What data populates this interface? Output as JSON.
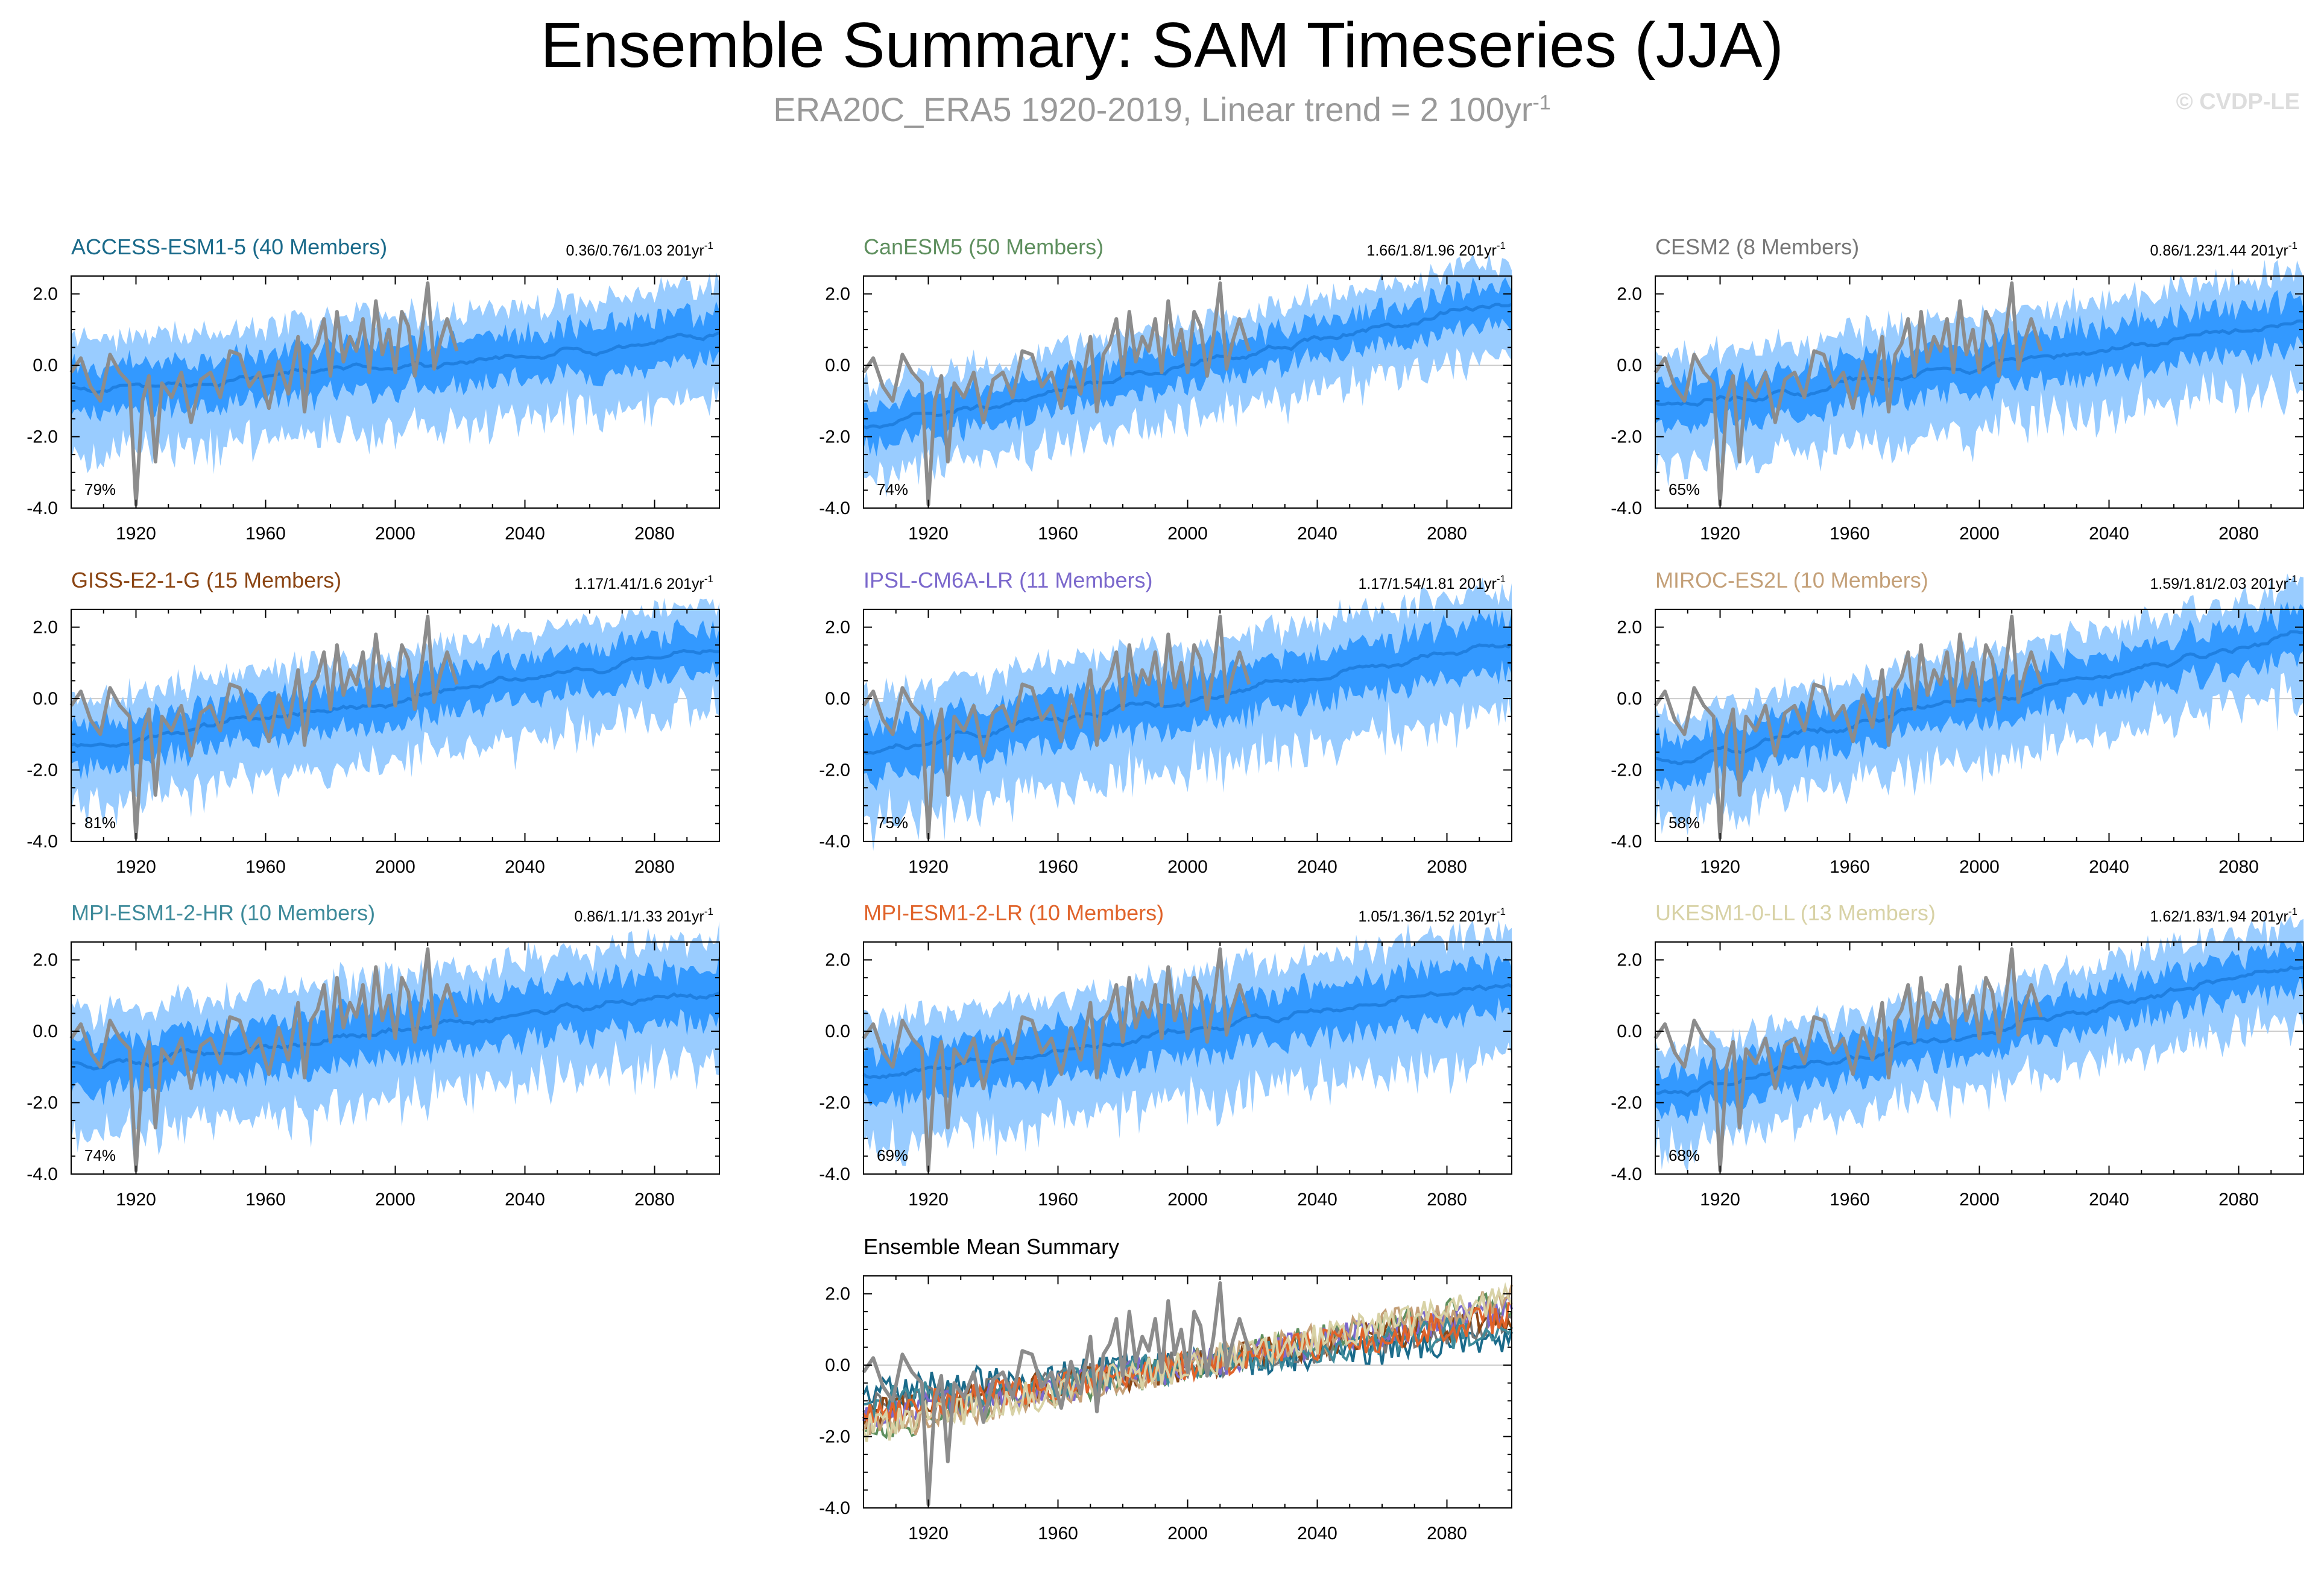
{
  "title": "Ensemble Summary: SAM Timeseries (JJA)",
  "subtitle": "ERA20C_ERA5 1920-2019, Linear trend = 2 100yr",
  "subtitle_sup": "-1",
  "watermark": "© CVDP-LE",
  "colors": {
    "outer_band": "#99ccff",
    "inner_band": "#3399ff",
    "ensemble_mean": "#1f7fe0",
    "observed": "#8c8c8c"
  },
  "chart_data": [
    {
      "type": "area",
      "title": "ACCESS-ESM1-5 (40 Members)",
      "title_color": "#1a6a8a",
      "trend_text": "0.36/0.76/1.03 201yr",
      "trend_sup": "-1",
      "percent": "79%",
      "trend": 0.0076,
      "spread": 0.9,
      "xlim": [
        1900,
        2100
      ],
      "ylim": [
        -4,
        2.5
      ],
      "xticks": [
        1920,
        1960,
        2000,
        2040,
        2080
      ],
      "yticks": [
        2,
        0,
        -2,
        -4
      ],
      "ytick_labels": [
        "2.0",
        "0.0",
        "-2.0",
        "-4.0"
      ]
    },
    {
      "type": "area",
      "title": "CanESM5 (50 Members)",
      "title_color": "#5e8f5e",
      "trend_text": "1.66/1.8/1.96 201yr",
      "trend_sup": "-1",
      "percent": "74%",
      "trend": 0.018,
      "spread": 0.75,
      "xlim": [
        1900,
        2100
      ],
      "ylim": [
        -4,
        2.5
      ],
      "xticks": [
        1920,
        1960,
        2000,
        2040,
        2080
      ],
      "yticks": [
        2,
        0,
        -2,
        -4
      ],
      "ytick_labels": [
        "2.0",
        "0.0",
        "-2.0",
        "-4.0"
      ]
    },
    {
      "type": "area",
      "title": "CESM2 (8 Members)",
      "title_color": "#777777",
      "trend_text": "0.86/1.23/1.44 201yr",
      "trend_sup": "-1",
      "percent": "65%",
      "trend": 0.0123,
      "spread": 0.9,
      "xlim": [
        1900,
        2100
      ],
      "ylim": [
        -4,
        2.5
      ],
      "xticks": [
        1920,
        1960,
        2000,
        2040,
        2080
      ],
      "yticks": [
        2,
        0,
        -2,
        -4
      ],
      "ytick_labels": [
        "2.0",
        "0.0",
        "-2.0",
        "-4.0"
      ]
    },
    {
      "type": "area",
      "title": "GISS-E2-1-G (15 Members)",
      "title_color": "#8b4513",
      "trend_text": "1.17/1.41/1.6 201yr",
      "trend_sup": "-1",
      "percent": "81%",
      "trend": 0.0141,
      "spread": 0.85,
      "xlim": [
        1900,
        2100
      ],
      "ylim": [
        -4,
        2.5
      ],
      "xticks": [
        1920,
        1960,
        2000,
        2040,
        2080
      ],
      "yticks": [
        2,
        0,
        -2,
        -4
      ],
      "ytick_labels": [
        "2.0",
        "0.0",
        "-2.0",
        "-4.0"
      ]
    },
    {
      "type": "area",
      "title": "IPSL-CM6A-LR (11 Members)",
      "title_color": "#7b68cc",
      "trend_text": "1.17/1.54/1.81 201yr",
      "trend_sup": "-1",
      "percent": "75%",
      "trend": 0.0154,
      "spread": 1.0,
      "xlim": [
        1900,
        2100
      ],
      "ylim": [
        -4,
        2.5
      ],
      "xticks": [
        1920,
        1960,
        2000,
        2040,
        2080
      ],
      "yticks": [
        2,
        0,
        -2,
        -4
      ],
      "ytick_labels": [
        "2.0",
        "0.0",
        "-2.0",
        "-4.0"
      ]
    },
    {
      "type": "area",
      "title": "MIROC-ES2L (10 Members)",
      "title_color": "#c4a078",
      "trend_text": "1.59/1.81/2.03 201yr",
      "trend_sup": "-1",
      "percent": "58%",
      "trend": 0.0181,
      "spread": 0.85,
      "xlim": [
        1900,
        2100
      ],
      "ylim": [
        -4,
        2.5
      ],
      "xticks": [
        1920,
        1960,
        2000,
        2040,
        2080
      ],
      "yticks": [
        2,
        0,
        -2,
        -4
      ],
      "ytick_labels": [
        "2.0",
        "0.0",
        "-2.0",
        "-4.0"
      ]
    },
    {
      "type": "area",
      "title": "MPI-ESM1-2-HR (10 Members)",
      "title_color": "#3d8a9a",
      "trend_text": "0.86/1.1/1.33 201yr",
      "trend_sup": "-1",
      "percent": "74%",
      "trend": 0.011,
      "spread": 1.0,
      "xlim": [
        1900,
        2100
      ],
      "ylim": [
        -4,
        2.5
      ],
      "xticks": [
        1920,
        1960,
        2000,
        2040,
        2080
      ],
      "yticks": [
        2,
        0,
        -2,
        -4
      ],
      "ytick_labels": [
        "2.0",
        "0.0",
        "-2.0",
        "-4.0"
      ]
    },
    {
      "type": "area",
      "title": "MPI-ESM1-2-LR (10 Members)",
      "title_color": "#e0632a",
      "trend_text": "1.05/1.36/1.52 201yr",
      "trend_sup": "-1",
      "percent": "69%",
      "trend": 0.0136,
      "spread": 1.0,
      "xlim": [
        1900,
        2100
      ],
      "ylim": [
        -4,
        2.5
      ],
      "xticks": [
        1920,
        1960,
        2000,
        2040,
        2080
      ],
      "yticks": [
        2,
        0,
        -2,
        -4
      ],
      "ytick_labels": [
        "2.0",
        "0.0",
        "-2.0",
        "-4.0"
      ]
    },
    {
      "type": "area",
      "title": "UKESM1-0-LL (13 Members)",
      "title_color": "#d8d2a6",
      "trend_text": "1.62/1.83/1.94 201yr",
      "trend_sup": "-1",
      "percent": "68%",
      "trend": 0.0183,
      "spread": 0.8,
      "xlim": [
        1900,
        2100
      ],
      "ylim": [
        -4,
        2.5
      ],
      "xticks": [
        1920,
        1960,
        2000,
        2040,
        2080
      ],
      "yticks": [
        2,
        0,
        -2,
        -4
      ],
      "ytick_labels": [
        "2.0",
        "0.0",
        "-2.0",
        "-4.0"
      ]
    },
    {
      "type": "line",
      "title": "Ensemble Mean Summary",
      "title_color": "#000000",
      "xlim": [
        1900,
        2100
      ],
      "ylim": [
        -4,
        2.5
      ],
      "xticks": [
        1920,
        1960,
        2000,
        2040,
        2080
      ],
      "yticks": [
        2,
        0,
        -2,
        -4
      ],
      "ytick_labels": [
        "2.0",
        "0.0",
        "-2.0",
        "-4.0"
      ],
      "series": [
        {
          "name": "ACCESS-ESM1-5",
          "color": "#1a6a8a",
          "trend": 0.0076
        },
        {
          "name": "CanESM5",
          "color": "#5e8f5e",
          "trend": 0.018
        },
        {
          "name": "CESM2",
          "color": "#777777",
          "trend": 0.0123
        },
        {
          "name": "GISS-E2-1-G",
          "color": "#8b4513",
          "trend": 0.0141
        },
        {
          "name": "IPSL-CM6A-LR",
          "color": "#7b68cc",
          "trend": 0.0154
        },
        {
          "name": "MIROC-ES2L",
          "color": "#c4a078",
          "trend": 0.0181
        },
        {
          "name": "MPI-ESM1-2-HR",
          "color": "#3d8a9a",
          "trend": 0.011
        },
        {
          "name": "MPI-ESM1-2-LR",
          "color": "#e0632a",
          "trend": 0.0136
        },
        {
          "name": "UKESM1-0-LL",
          "color": "#d8d2a6",
          "trend": 0.0183
        }
      ]
    }
  ],
  "observed": {
    "name": "ERA20C_ERA5",
    "years": [
      1900,
      1903,
      1906,
      1909,
      1912,
      1915,
      1918,
      1920,
      1922,
      1924,
      1926,
      1928,
      1931,
      1934,
      1937,
      1940,
      1943,
      1946,
      1949,
      1952,
      1955,
      1958,
      1961,
      1964,
      1967,
      1970,
      1972,
      1974,
      1976,
      1978,
      1980,
      1982,
      1984,
      1986,
      1988,
      1990,
      1992,
      1994,
      1996,
      1998,
      2000,
      2002,
      2004,
      2006,
      2008,
      2010,
      2012,
      2014,
      2016,
      2019
    ],
    "values": [
      -0.2,
      0.2,
      -0.6,
      -1.0,
      0.3,
      -0.2,
      -0.5,
      -3.9,
      -1.0,
      -0.3,
      -2.7,
      -0.5,
      -0.9,
      -0.2,
      -1.6,
      -0.4,
      -0.2,
      -0.9,
      0.4,
      0.3,
      -0.6,
      -0.2,
      -1.2,
      0.1,
      -0.8,
      0.8,
      -1.3,
      0.3,
      0.6,
      1.3,
      -0.3,
      1.5,
      0.1,
      0.8,
      0.4,
      1.3,
      -0.2,
      1.8,
      0.3,
      1.0,
      -0.2,
      1.5,
      1.1,
      -0.3,
      0.8,
      2.3,
      -0.1,
      0.7,
      1.3,
      0.4
    ]
  }
}
